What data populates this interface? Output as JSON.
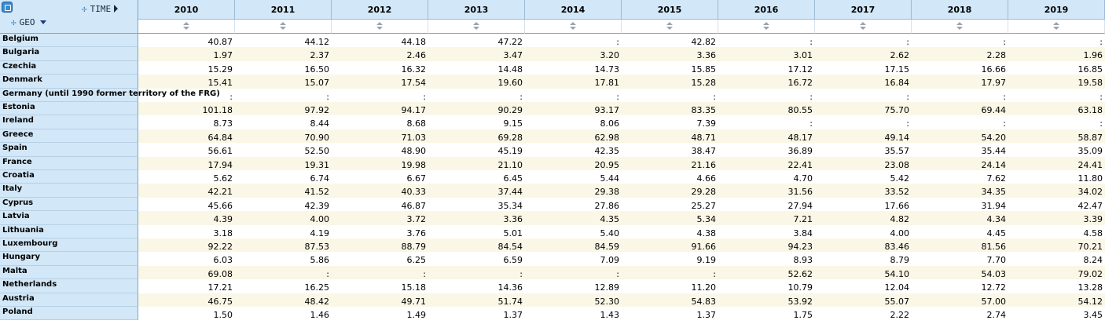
{
  "header": {
    "time_label": "TIME",
    "geo_label": "GEO",
    "years": [
      "2010",
      "2011",
      "2012",
      "2013",
      "2014",
      "2015",
      "2016",
      "2017",
      "2018",
      "2019"
    ]
  },
  "rows": [
    {
      "geo": "Belgium",
      "values": [
        "40.87",
        "44.12",
        "44.18",
        "47.22",
        ":",
        "42.82",
        ":",
        ":",
        ":",
        ":"
      ]
    },
    {
      "geo": "Bulgaria",
      "values": [
        "1.97",
        "2.37",
        "2.46",
        "3.47",
        "3.20",
        "3.36",
        "3.01",
        "2.62",
        "2.28",
        "1.96"
      ]
    },
    {
      "geo": "Czechia",
      "values": [
        "15.29",
        "16.50",
        "16.32",
        "14.48",
        "14.73",
        "15.85",
        "17.12",
        "17.15",
        "16.66",
        "16.85"
      ]
    },
    {
      "geo": "Denmark",
      "values": [
        "15.41",
        "15.07",
        "17.54",
        "19.60",
        "17.81",
        "15.28",
        "16.72",
        "16.84",
        "17.97",
        "19.58"
      ]
    },
    {
      "geo": "Germany (until 1990 former territory of the FRG)",
      "values": [
        ":",
        ":",
        ":",
        ":",
        ":",
        ":",
        ":",
        ":",
        ":",
        ":"
      ]
    },
    {
      "geo": "Estonia",
      "values": [
        "101.18",
        "97.92",
        "94.17",
        "90.29",
        "93.17",
        "83.35",
        "80.55",
        "75.70",
        "69.44",
        "63.18"
      ]
    },
    {
      "geo": "Ireland",
      "values": [
        "8.73",
        "8.44",
        "8.68",
        "9.15",
        "8.06",
        "7.39",
        ":",
        ":",
        ":",
        ":"
      ]
    },
    {
      "geo": "Greece",
      "values": [
        "64.84",
        "70.90",
        "71.03",
        "69.28",
        "62.98",
        "48.71",
        "48.17",
        "49.14",
        "54.20",
        "58.87"
      ]
    },
    {
      "geo": "Spain",
      "values": [
        "56.61",
        "52.50",
        "48.90",
        "45.19",
        "42.35",
        "38.47",
        "36.89",
        "35.57",
        "35.44",
        "35.09"
      ]
    },
    {
      "geo": "France",
      "values": [
        "17.94",
        "19.31",
        "19.98",
        "21.10",
        "20.95",
        "21.16",
        "22.41",
        "23.08",
        "24.14",
        "24.41"
      ]
    },
    {
      "geo": "Croatia",
      "values": [
        "5.62",
        "6.74",
        "6.67",
        "6.45",
        "5.44",
        "4.66",
        "4.70",
        "5.42",
        "7.62",
        "11.80"
      ]
    },
    {
      "geo": "Italy",
      "values": [
        "42.21",
        "41.52",
        "40.33",
        "37.44",
        "29.38",
        "29.28",
        "31.56",
        "33.52",
        "34.35",
        "34.02"
      ]
    },
    {
      "geo": "Cyprus",
      "values": [
        "45.66",
        "42.39",
        "46.87",
        "35.34",
        "27.86",
        "25.27",
        "27.94",
        "17.66",
        "31.94",
        "42.47"
      ]
    },
    {
      "geo": "Latvia",
      "values": [
        "4.39",
        "4.00",
        "3.72",
        "3.36",
        "4.35",
        "5.34",
        "7.21",
        "4.82",
        "4.34",
        "3.39"
      ]
    },
    {
      "geo": "Lithuania",
      "values": [
        "3.18",
        "4.19",
        "3.76",
        "5.01",
        "5.40",
        "4.38",
        "3.84",
        "4.00",
        "4.45",
        "4.58"
      ]
    },
    {
      "geo": "Luxembourg",
      "values": [
        "92.22",
        "87.53",
        "88.79",
        "84.54",
        "84.59",
        "91.66",
        "94.23",
        "83.46",
        "81.56",
        "70.21"
      ]
    },
    {
      "geo": "Hungary",
      "values": [
        "6.03",
        "5.86",
        "6.25",
        "6.59",
        "7.09",
        "9.19",
        "8.93",
        "8.79",
        "7.70",
        "8.24"
      ]
    },
    {
      "geo": "Malta",
      "values": [
        "69.08",
        ":",
        ":",
        ":",
        ":",
        ":",
        "52.62",
        "54.10",
        "54.03",
        "79.02"
      ]
    },
    {
      "geo": "Netherlands",
      "values": [
        "17.21",
        "16.25",
        "15.18",
        "14.36",
        "12.89",
        "11.20",
        "10.79",
        "12.04",
        "12.72",
        "13.28"
      ]
    },
    {
      "geo": "Austria",
      "values": [
        "46.75",
        "48.42",
        "49.71",
        "51.74",
        "52.30",
        "54.83",
        "53.92",
        "55.07",
        "57.00",
        "54.12"
      ]
    },
    {
      "geo": "Poland",
      "values": [
        "1.50",
        "1.46",
        "1.49",
        "1.37",
        "1.43",
        "1.37",
        "1.75",
        "2.22",
        "2.74",
        "3.45"
      ]
    }
  ]
}
